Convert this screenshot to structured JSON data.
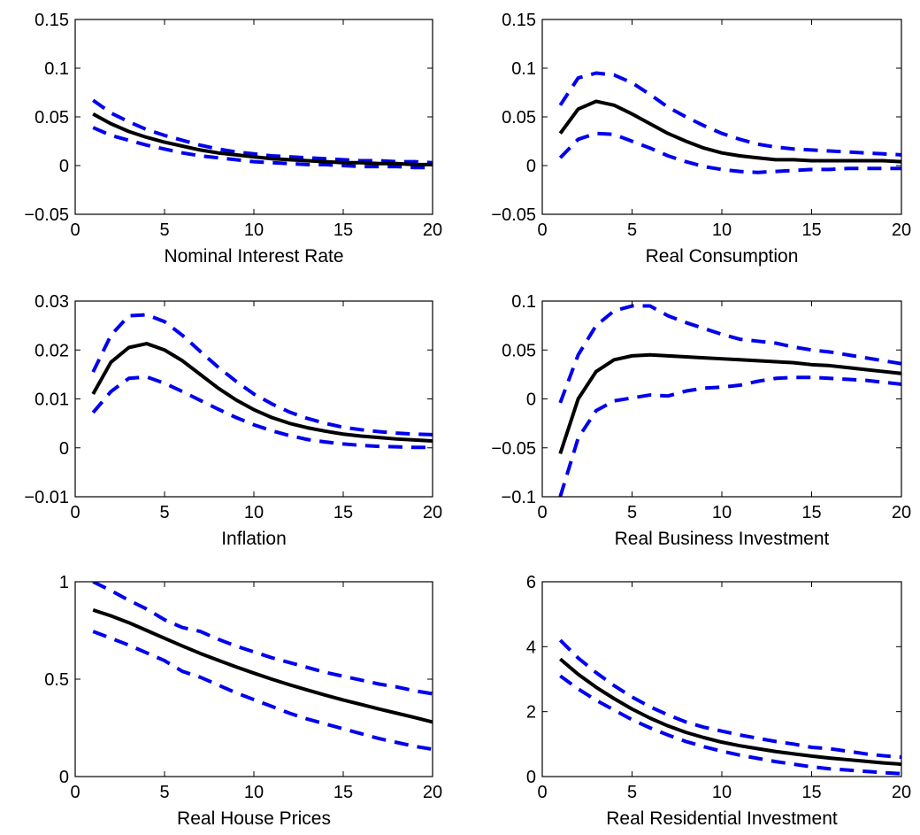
{
  "colors": {
    "mean": "#000000",
    "bands": "#0000ee",
    "axes": "#000000",
    "background": "#ffffff"
  },
  "chart_data": [
    {
      "type": "line",
      "xlabel": "Nominal Interest Rate",
      "xlim": [
        0,
        20
      ],
      "ylim": [
        -0.05,
        0.15
      ],
      "xticks": [
        "0",
        "5",
        "10",
        "15",
        "20"
      ],
      "yticks": [
        "−0.05",
        "0",
        "0.05",
        "0.1",
        "0.15"
      ],
      "x": [
        1,
        2,
        3,
        4,
        5,
        6,
        7,
        8,
        9,
        10,
        11,
        12,
        13,
        14,
        15,
        16,
        17,
        18,
        19,
        20
      ],
      "series": [
        {
          "role": "mean",
          "values": [
            0.053,
            0.043,
            0.035,
            0.029,
            0.024,
            0.02,
            0.016,
            0.013,
            0.011,
            0.009,
            0.007,
            0.006,
            0.005,
            0.004,
            0.003,
            0.003,
            0.002,
            0.002,
            0.001,
            0.001
          ]
        },
        {
          "role": "upper",
          "values": [
            0.067,
            0.054,
            0.045,
            0.037,
            0.031,
            0.026,
            0.021,
            0.017,
            0.014,
            0.012,
            0.01,
            0.009,
            0.008,
            0.007,
            0.006,
            0.005,
            0.005,
            0.004,
            0.004,
            0.003
          ]
        },
        {
          "role": "lower",
          "values": [
            0.039,
            0.031,
            0.026,
            0.021,
            0.017,
            0.013,
            0.01,
            0.008,
            0.006,
            0.004,
            0.003,
            0.002,
            0.001,
            0.001,
            0.0,
            -0.001,
            -0.001,
            -0.001,
            -0.002,
            -0.002
          ]
        }
      ]
    },
    {
      "type": "line",
      "xlabel": "Real Consumption",
      "xlim": [
        0,
        20
      ],
      "ylim": [
        -0.05,
        0.15
      ],
      "xticks": [
        "0",
        "5",
        "10",
        "15",
        "20"
      ],
      "yticks": [
        "−0.05",
        "0",
        "0.05",
        "0.1",
        "0.15"
      ],
      "x": [
        1,
        2,
        3,
        4,
        5,
        6,
        7,
        8,
        9,
        10,
        11,
        12,
        13,
        14,
        15,
        16,
        17,
        18,
        19,
        20
      ],
      "series": [
        {
          "role": "mean",
          "values": [
            0.033,
            0.058,
            0.066,
            0.062,
            0.053,
            0.043,
            0.033,
            0.025,
            0.018,
            0.013,
            0.01,
            0.008,
            0.006,
            0.006,
            0.005,
            0.005,
            0.005,
            0.005,
            0.005,
            0.004
          ]
        },
        {
          "role": "upper",
          "values": [
            0.062,
            0.09,
            0.095,
            0.093,
            0.085,
            0.073,
            0.06,
            0.05,
            0.041,
            0.033,
            0.027,
            0.022,
            0.019,
            0.017,
            0.016,
            0.015,
            0.014,
            0.013,
            0.012,
            0.011
          ]
        },
        {
          "role": "lower",
          "values": [
            0.008,
            0.027,
            0.033,
            0.032,
            0.025,
            0.018,
            0.01,
            0.004,
            -0.001,
            -0.004,
            -0.006,
            -0.007,
            -0.006,
            -0.005,
            -0.004,
            -0.004,
            -0.003,
            -0.003,
            -0.003,
            -0.003
          ]
        }
      ]
    },
    {
      "type": "line",
      "xlabel": "Inflation",
      "xlim": [
        0,
        20
      ],
      "ylim": [
        -0.01,
        0.03
      ],
      "xticks": [
        "0",
        "5",
        "10",
        "15",
        "20"
      ],
      "yticks": [
        "−0.01",
        "0",
        "0.01",
        "0.02",
        "0.03"
      ],
      "x": [
        1,
        2,
        3,
        4,
        5,
        6,
        7,
        8,
        9,
        10,
        11,
        12,
        13,
        14,
        15,
        16,
        17,
        18,
        19,
        20
      ],
      "series": [
        {
          "role": "mean",
          "values": [
            0.011,
            0.0175,
            0.0205,
            0.0213,
            0.02,
            0.0178,
            0.015,
            0.0122,
            0.0098,
            0.0078,
            0.0062,
            0.005,
            0.0041,
            0.0034,
            0.0028,
            0.0024,
            0.0021,
            0.0018,
            0.0016,
            0.0014
          ]
        },
        {
          "role": "upper",
          "values": [
            0.0155,
            0.023,
            0.027,
            0.0272,
            0.0258,
            0.023,
            0.0197,
            0.0165,
            0.0136,
            0.011,
            0.009,
            0.0073,
            0.006,
            0.005,
            0.0042,
            0.0037,
            0.0033,
            0.003,
            0.0028,
            0.0027
          ]
        },
        {
          "role": "lower",
          "values": [
            0.0072,
            0.0115,
            0.0142,
            0.0145,
            0.0132,
            0.0115,
            0.0097,
            0.0079,
            0.0062,
            0.0047,
            0.0035,
            0.0025,
            0.0017,
            0.0012,
            0.0008,
            0.0005,
            0.0003,
            0.0002,
            0.0001,
            0.0001
          ]
        }
      ]
    },
    {
      "type": "line",
      "xlabel": "Real Business Investment",
      "xlim": [
        0,
        20
      ],
      "ylim": [
        -0.1,
        0.1
      ],
      "xticks": [
        "0",
        "5",
        "10",
        "15",
        "20"
      ],
      "yticks": [
        "−0.1",
        "−0.05",
        "0",
        "0.05",
        "0.1"
      ],
      "x": [
        1,
        2,
        3,
        4,
        5,
        6,
        7,
        8,
        9,
        10,
        11,
        12,
        13,
        14,
        15,
        16,
        17,
        18,
        19,
        20
      ],
      "series": [
        {
          "role": "mean",
          "values": [
            -0.056,
            0.0,
            0.028,
            0.04,
            0.044,
            0.045,
            0.044,
            0.043,
            0.042,
            0.041,
            0.04,
            0.039,
            0.038,
            0.037,
            0.035,
            0.034,
            0.032,
            0.03,
            0.028,
            0.026
          ]
        },
        {
          "role": "upper",
          "values": [
            -0.004,
            0.045,
            0.075,
            0.09,
            0.095,
            0.095,
            0.085,
            0.078,
            0.072,
            0.066,
            0.061,
            0.059,
            0.057,
            0.053,
            0.05,
            0.048,
            0.045,
            0.042,
            0.039,
            0.036
          ]
        },
        {
          "role": "lower",
          "values": [
            -0.1,
            -0.04,
            -0.012,
            -0.002,
            0.001,
            0.004,
            0.003,
            0.008,
            0.011,
            0.012,
            0.014,
            0.018,
            0.021,
            0.022,
            0.022,
            0.021,
            0.02,
            0.019,
            0.017,
            0.015
          ]
        }
      ]
    },
    {
      "type": "line",
      "xlabel": "Real House Prices",
      "xlim": [
        0,
        20
      ],
      "ylim": [
        0,
        1
      ],
      "xticks": [
        "0",
        "5",
        "10",
        "15",
        "20"
      ],
      "yticks": [
        "0",
        "0.5",
        "1"
      ],
      "x": [
        1,
        2,
        3,
        4,
        5,
        6,
        7,
        8,
        9,
        10,
        11,
        12,
        13,
        14,
        15,
        16,
        17,
        18,
        19,
        20
      ],
      "series": [
        {
          "role": "mean",
          "values": [
            0.855,
            0.825,
            0.79,
            0.75,
            0.71,
            0.67,
            0.632,
            0.597,
            0.563,
            0.531,
            0.5,
            0.471,
            0.444,
            0.418,
            0.393,
            0.37,
            0.347,
            0.325,
            0.303,
            0.28
          ]
        },
        {
          "role": "upper",
          "values": [
            1.0,
            0.955,
            0.905,
            0.86,
            0.805,
            0.765,
            0.745,
            0.705,
            0.67,
            0.64,
            0.61,
            0.585,
            0.56,
            0.535,
            0.515,
            0.495,
            0.475,
            0.46,
            0.44,
            0.425
          ]
        },
        {
          "role": "lower",
          "values": [
            0.745,
            0.71,
            0.675,
            0.635,
            0.595,
            0.54,
            0.51,
            0.47,
            0.43,
            0.395,
            0.36,
            0.325,
            0.295,
            0.27,
            0.245,
            0.22,
            0.195,
            0.175,
            0.155,
            0.14
          ]
        }
      ]
    },
    {
      "type": "line",
      "xlabel": "Real Residential Investment",
      "xlim": [
        0,
        20
      ],
      "ylim": [
        0,
        6
      ],
      "xticks": [
        "0",
        "5",
        "10",
        "15",
        "20"
      ],
      "yticks": [
        "0",
        "2",
        "4",
        "6"
      ],
      "x": [
        1,
        2,
        3,
        4,
        5,
        6,
        7,
        8,
        9,
        10,
        11,
        12,
        13,
        14,
        15,
        16,
        17,
        18,
        19,
        20
      ],
      "series": [
        {
          "role": "mean",
          "values": [
            3.62,
            3.15,
            2.75,
            2.4,
            2.08,
            1.8,
            1.56,
            1.36,
            1.2,
            1.06,
            0.95,
            0.86,
            0.77,
            0.7,
            0.63,
            0.57,
            0.52,
            0.47,
            0.42,
            0.38
          ]
        },
        {
          "role": "upper",
          "values": [
            4.2,
            3.65,
            3.2,
            2.8,
            2.45,
            2.15,
            1.9,
            1.68,
            1.52,
            1.4,
            1.28,
            1.18,
            1.08,
            1.0,
            0.9,
            0.86,
            0.78,
            0.7,
            0.64,
            0.6
          ]
        },
        {
          "role": "lower",
          "values": [
            3.1,
            2.7,
            2.35,
            2.05,
            1.75,
            1.5,
            1.28,
            1.08,
            0.92,
            0.78,
            0.66,
            0.56,
            0.46,
            0.38,
            0.3,
            0.24,
            0.2,
            0.16,
            0.12,
            0.09
          ]
        }
      ]
    }
  ]
}
